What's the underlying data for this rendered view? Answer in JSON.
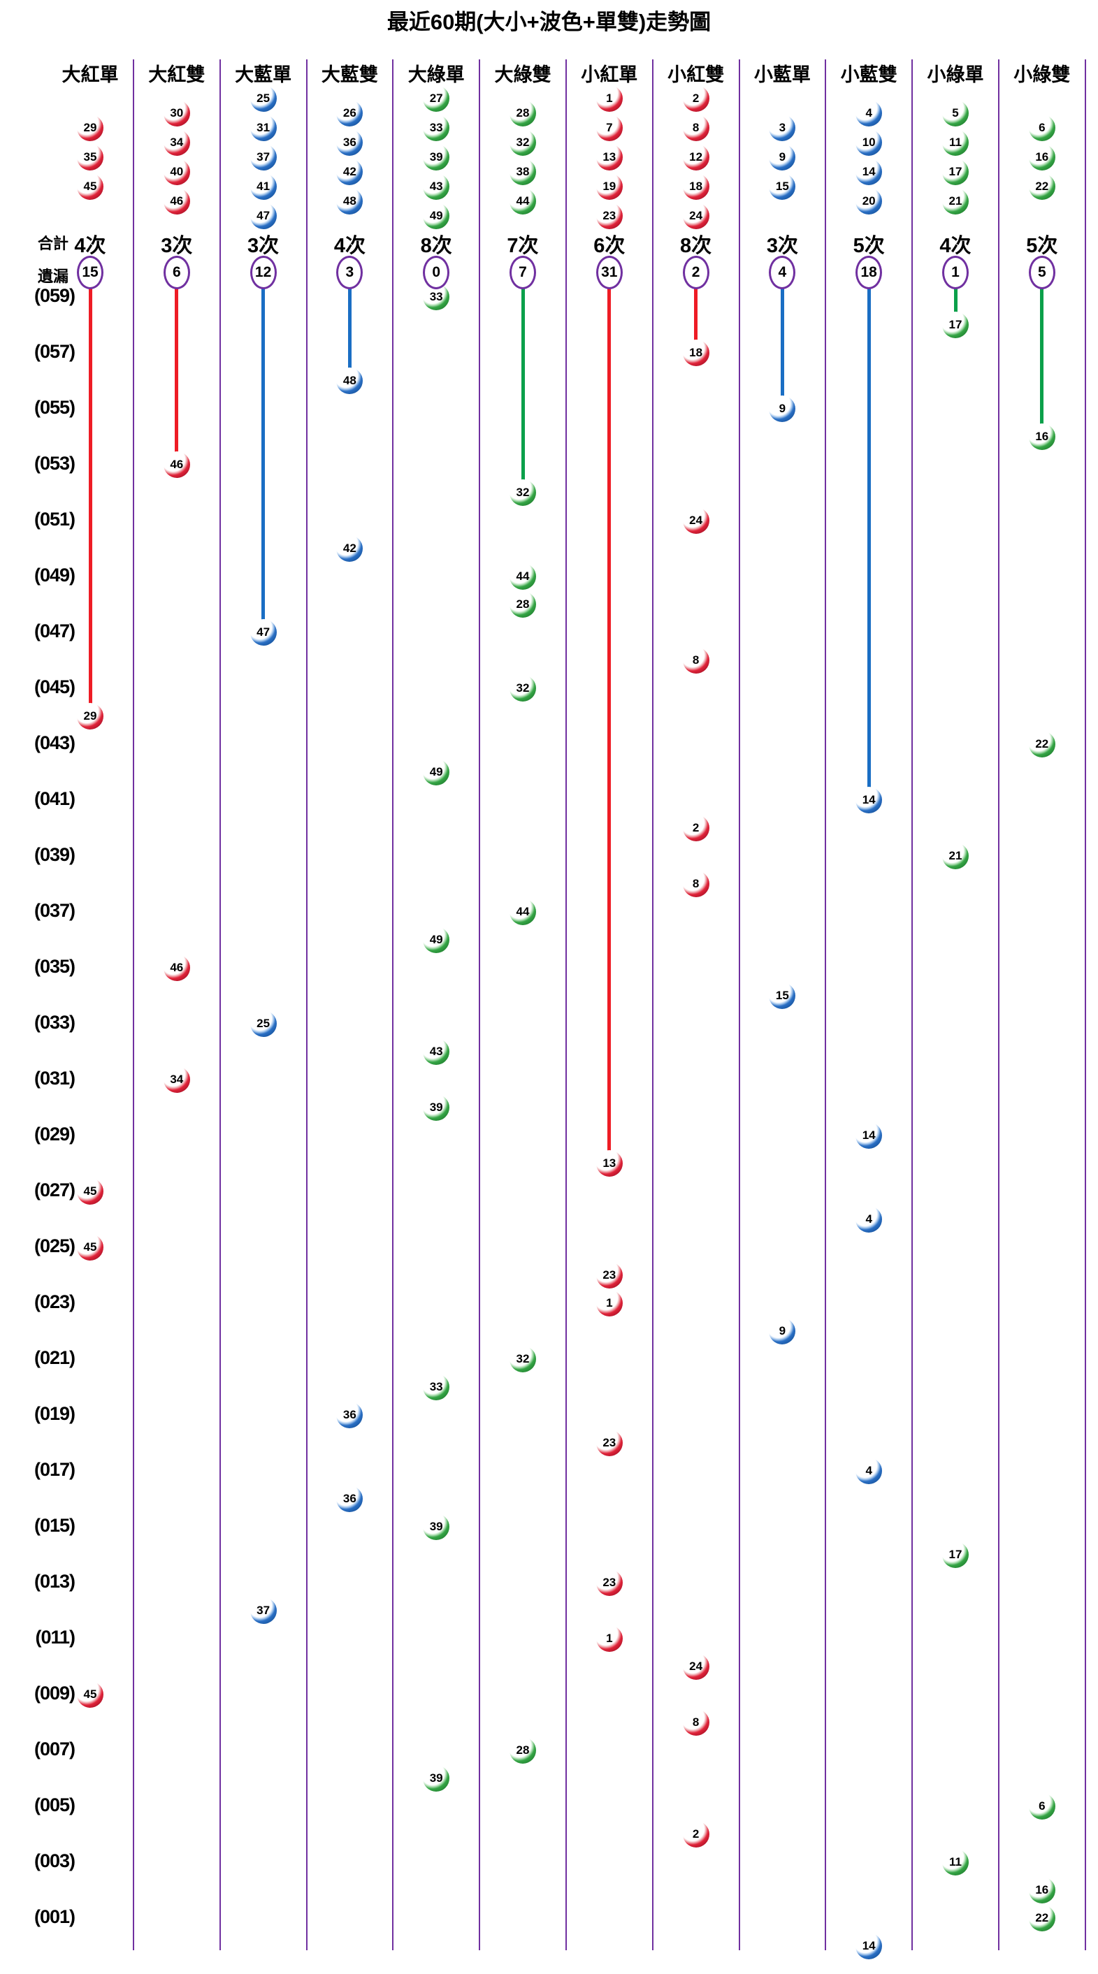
{
  "title": "最近60期(大小+波色+單雙)走勢圖",
  "palette": {
    "red": "#ee1c25",
    "blue": "#1a6ec4",
    "green": "#0aa04a",
    "purple": "#7030a0"
  },
  "chart_data": {
    "type": "scatter",
    "title": "最近60期(大小+波色+單雙)走勢圖",
    "total_label": "合計",
    "miss_label": "遺漏",
    "legend_position": "top",
    "grid": "vertical-dividers",
    "row_labels": [
      "(059)",
      "(057)",
      "(055)",
      "(053)",
      "(051)",
      "(049)",
      "(047)",
      "(045)",
      "(043)",
      "(041)",
      "(039)",
      "(037)",
      "(035)",
      "(033)",
      "(031)",
      "(029)",
      "(027)",
      "(025)",
      "(023)",
      "(021)",
      "(019)",
      "(017)",
      "(015)",
      "(013)",
      "(011)",
      "(009)",
      "(007)",
      "(005)",
      "(003)",
      "(001)"
    ],
    "period_range": [
      59,
      0
    ],
    "columns": [
      {
        "name": "大紅單",
        "group": "red",
        "members": [
          29,
          35,
          45
        ],
        "total": "4次",
        "miss": 15,
        "hits": [
          {
            "ball": 29,
            "period": 44
          },
          {
            "ball": 45,
            "period": 27
          },
          {
            "ball": 45,
            "period": 25
          },
          {
            "ball": 45,
            "period": 9
          }
        ]
      },
      {
        "name": "大紅雙",
        "group": "red",
        "members": [
          30,
          34,
          40,
          46
        ],
        "total": "3次",
        "miss": 6,
        "hits": [
          {
            "ball": 46,
            "period": 53
          },
          {
            "ball": 46,
            "period": 35
          },
          {
            "ball": 34,
            "period": 31
          }
        ]
      },
      {
        "name": "大藍單",
        "group": "blue",
        "members": [
          25,
          31,
          37,
          41,
          47
        ],
        "total": "3次",
        "miss": 12,
        "hits": [
          {
            "ball": 47,
            "period": 47
          },
          {
            "ball": 25,
            "period": 33
          },
          {
            "ball": 37,
            "period": 12
          }
        ]
      },
      {
        "name": "大藍雙",
        "group": "blue",
        "members": [
          26,
          36,
          42,
          48
        ],
        "total": "4次",
        "miss": 3,
        "hits": [
          {
            "ball": 48,
            "period": 56
          },
          {
            "ball": 42,
            "period": 50
          },
          {
            "ball": 36,
            "period": 19
          },
          {
            "ball": 36,
            "period": 16
          }
        ]
      },
      {
        "name": "大綠單",
        "group": "green",
        "members": [
          27,
          33,
          39,
          43,
          49
        ],
        "total": "8次",
        "miss": 0,
        "hits": [
          {
            "ball": 33,
            "period": 59
          },
          {
            "ball": 49,
            "period": 42
          },
          {
            "ball": 49,
            "period": 36
          },
          {
            "ball": 43,
            "period": 32
          },
          {
            "ball": 39,
            "period": 30
          },
          {
            "ball": 33,
            "period": 20
          },
          {
            "ball": 39,
            "period": 15
          },
          {
            "ball": 39,
            "period": 6
          }
        ]
      },
      {
        "name": "大綠雙",
        "group": "green",
        "members": [
          28,
          32,
          38,
          44
        ],
        "total": "7次",
        "miss": 7,
        "hits": [
          {
            "ball": 32,
            "period": 52
          },
          {
            "ball": 44,
            "period": 49
          },
          {
            "ball": 28,
            "period": 48
          },
          {
            "ball": 32,
            "period": 45
          },
          {
            "ball": 44,
            "period": 37
          },
          {
            "ball": 32,
            "period": 21
          },
          {
            "ball": 28,
            "period": 7
          }
        ]
      },
      {
        "name": "小紅單",
        "group": "red",
        "members": [
          1,
          7,
          13,
          19,
          23
        ],
        "total": "6次",
        "miss": 31,
        "hits": [
          {
            "ball": 13,
            "period": 28
          },
          {
            "ball": 23,
            "period": 24
          },
          {
            "ball": 1,
            "period": 23
          },
          {
            "ball": 23,
            "period": 18
          },
          {
            "ball": 23,
            "period": 13
          },
          {
            "ball": 1,
            "period": 11
          }
        ]
      },
      {
        "name": "小紅雙",
        "group": "red",
        "members": [
          2,
          8,
          12,
          18,
          24
        ],
        "total": "8次",
        "miss": 2,
        "hits": [
          {
            "ball": 18,
            "period": 57
          },
          {
            "ball": 24,
            "period": 51
          },
          {
            "ball": 8,
            "period": 46
          },
          {
            "ball": 2,
            "period": 40
          },
          {
            "ball": 8,
            "period": 38
          },
          {
            "ball": 24,
            "period": 10
          },
          {
            "ball": 8,
            "period": 8
          },
          {
            "ball": 2,
            "period": 4
          }
        ]
      },
      {
        "name": "小藍單",
        "group": "blue",
        "members": [
          3,
          9,
          15
        ],
        "total": "3次",
        "miss": 4,
        "hits": [
          {
            "ball": 9,
            "period": 55
          },
          {
            "ball": 15,
            "period": 34
          },
          {
            "ball": 9,
            "period": 22
          }
        ]
      },
      {
        "name": "小藍雙",
        "group": "blue",
        "members": [
          4,
          10,
          14,
          20
        ],
        "total": "5次",
        "miss": 18,
        "hits": [
          {
            "ball": 14,
            "period": 41
          },
          {
            "ball": 14,
            "period": 29
          },
          {
            "ball": 4,
            "period": 26
          },
          {
            "ball": 4,
            "period": 17
          },
          {
            "ball": 14,
            "period": 0
          }
        ]
      },
      {
        "name": "小綠單",
        "group": "green",
        "members": [
          5,
          11,
          17,
          21
        ],
        "total": "4次",
        "miss": 1,
        "hits": [
          {
            "ball": 17,
            "period": 58
          },
          {
            "ball": 21,
            "period": 39
          },
          {
            "ball": 17,
            "period": 14
          },
          {
            "ball": 11,
            "period": 3
          }
        ]
      },
      {
        "name": "小綠雙",
        "group": "green",
        "members": [
          6,
          16,
          22
        ],
        "total": "5次",
        "miss": 5,
        "hits": [
          {
            "ball": 16,
            "period": 54
          },
          {
            "ball": 22,
            "period": 43
          },
          {
            "ball": 6,
            "period": 5
          },
          {
            "ball": 16,
            "period": 2
          },
          {
            "ball": 22,
            "period": 1
          }
        ]
      }
    ]
  }
}
